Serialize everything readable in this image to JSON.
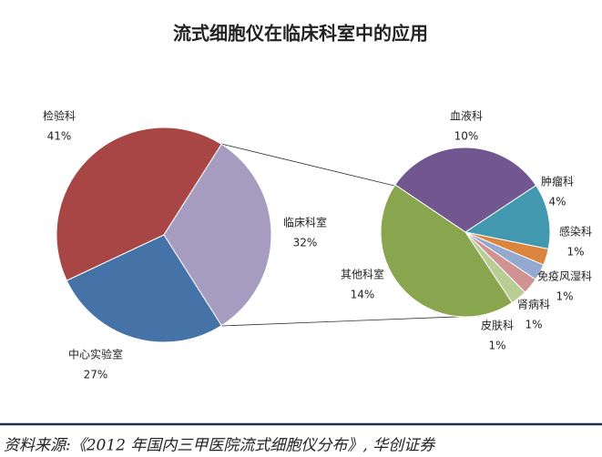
{
  "chart_data": {
    "type": "pie-of-pie",
    "title": "流式细胞仪在临床科室中的应用",
    "categories": [
      "检验科",
      "临床科室",
      "中心实验室"
    ],
    "values": [
      41,
      32,
      27
    ],
    "value_labels": [
      "41%",
      "32%",
      "27%"
    ],
    "colors": [
      "#a84646",
      "#a59cc0",
      "#4572a7"
    ],
    "detail": {
      "categories": [
        "血液科",
        "肿瘤科",
        "感染科",
        "免疫风湿科",
        "肾病科",
        "皮肤科",
        "其他科室"
      ],
      "values": [
        10,
        4,
        1,
        1,
        1,
        1,
        14
      ],
      "value_labels": [
        "10%",
        "4%",
        "1%",
        "1%",
        "1%",
        "1%",
        "14%"
      ],
      "colors": [
        "#71568f",
        "#4198af",
        "#db843d",
        "#93a9cf",
        "#d19392",
        "#b9cd96",
        "#89a54e"
      ]
    },
    "source": "资料来源:《2012 年国内三甲医院流式细胞仪分布》, 华创证券"
  }
}
